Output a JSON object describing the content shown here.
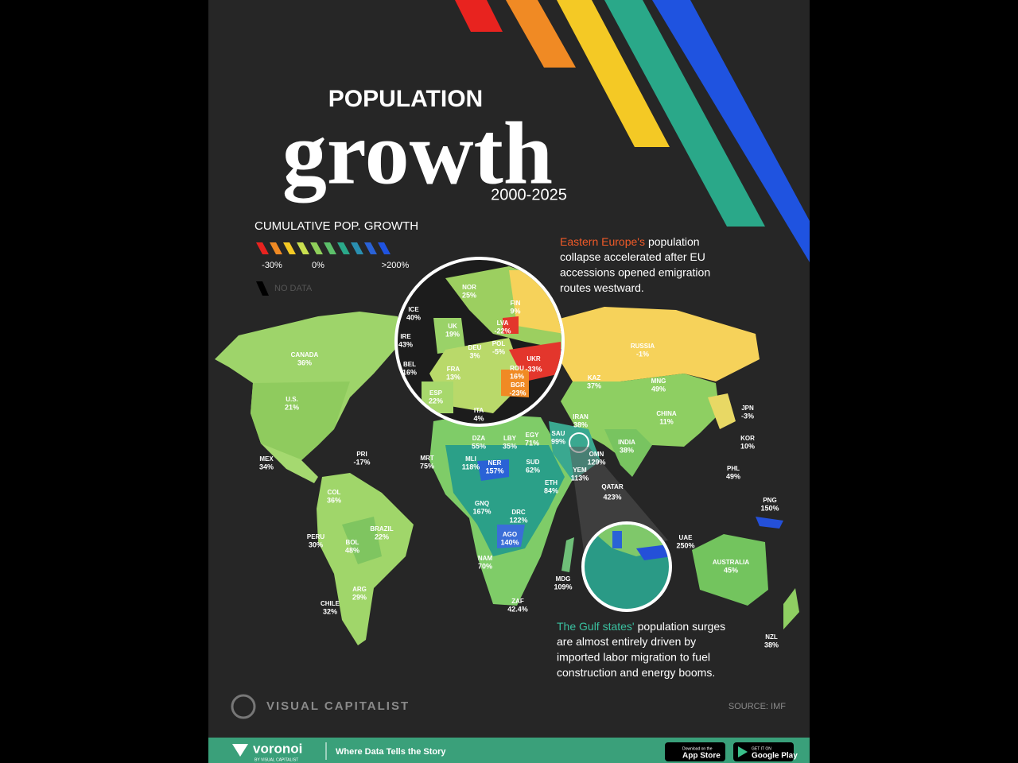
{
  "header": {
    "title_top": "POPULATION",
    "title_main": "growth",
    "years": "2000-2025"
  },
  "legend": {
    "title": "CUMULATIVE POP. GROWTH",
    "min": "-30%",
    "mid": "0%",
    "max": ">200%",
    "no_data": "NO DATA"
  },
  "annotations": [
    {
      "highlight": "Eastern Europe's",
      "lines": [
        "population",
        "collapse accelerated after EU",
        "accessions opened emigration",
        "routes westward."
      ]
    },
    {
      "highlight": "The Gulf states'",
      "lines": [
        "population surges",
        "are almost entirely driven by",
        "imported labor migration to fuel",
        "construction and energy booms."
      ]
    }
  ],
  "countries": [
    {
      "name": "CANADA",
      "value": "36%"
    },
    {
      "name": "U.S.",
      "value": "21%"
    },
    {
      "name": "MEX",
      "value": "34%"
    },
    {
      "name": "PRI",
      "value": "-17%"
    },
    {
      "name": "COL",
      "value": "36%"
    },
    {
      "name": "PERU",
      "value": "30%"
    },
    {
      "name": "BRAZIL",
      "value": "22%"
    },
    {
      "name": "BOL",
      "value": "48%"
    },
    {
      "name": "ARG",
      "value": "29%"
    },
    {
      "name": "CHILE",
      "value": "32%"
    },
    {
      "name": "RUSSIA",
      "value": "-1%"
    },
    {
      "name": "KAZ",
      "value": "37%"
    },
    {
      "name": "MNG",
      "value": "49%"
    },
    {
      "name": "CHINA",
      "value": "11%"
    },
    {
      "name": "JPN",
      "value": "-3%"
    },
    {
      "name": "KOR",
      "value": "10%"
    },
    {
      "name": "IRAN",
      "value": "38%"
    },
    {
      "name": "INDIA",
      "value": "38%"
    },
    {
      "name": "PHL",
      "value": "49%"
    },
    {
      "name": "PNG",
      "value": "150%"
    },
    {
      "name": "AUSTRALIA",
      "value": "45%"
    },
    {
      "name": "NZL",
      "value": "38%"
    },
    {
      "name": "DZA",
      "value": "55%"
    },
    {
      "name": "LBY",
      "value": "35%"
    },
    {
      "name": "EGY",
      "value": "71%"
    },
    {
      "name": "SAU",
      "value": "99%"
    },
    {
      "name": "OMN",
      "value": "129%"
    },
    {
      "name": "YEM",
      "value": "113%"
    },
    {
      "name": "MRT",
      "value": "75%"
    },
    {
      "name": "MLI",
      "value": "118%"
    },
    {
      "name": "NER",
      "value": "157%"
    },
    {
      "name": "SUD",
      "value": "62%"
    },
    {
      "name": "ETH",
      "value": "84%"
    },
    {
      "name": "GNQ",
      "value": "167%"
    },
    {
      "name": "DRC",
      "value": "122%"
    },
    {
      "name": "AGO",
      "value": "140%"
    },
    {
      "name": "NAM",
      "value": "70%"
    },
    {
      "name": "MDG",
      "value": "109%"
    },
    {
      "name": "ZAF",
      "value": "42.4%"
    },
    {
      "name": "QATAR",
      "value": "423%"
    },
    {
      "name": "UAE",
      "value": "250%"
    }
  ],
  "europe_inset": [
    {
      "name": "NOR",
      "value": "25%"
    },
    {
      "name": "ICE",
      "value": "40%"
    },
    {
      "name": "FIN",
      "value": "9%"
    },
    {
      "name": "LVA",
      "value": "-22%"
    },
    {
      "name": "UK",
      "value": "19%"
    },
    {
      "name": "IRE",
      "value": "43%"
    },
    {
      "name": "POL",
      "value": "-5%"
    },
    {
      "name": "DEU",
      "value": "3%"
    },
    {
      "name": "UKR",
      "value": "-33%"
    },
    {
      "name": "BEL",
      "value": "16%"
    },
    {
      "name": "FRA",
      "value": "13%"
    },
    {
      "name": "ROU",
      "value": "16%"
    },
    {
      "name": "BGR",
      "value": "-23%"
    },
    {
      "name": "ESP",
      "value": "22%"
    },
    {
      "name": "ITA",
      "value": "4%"
    }
  ],
  "footer": {
    "brand": "VISUAL CAPITALIST",
    "source": "SOURCE: IMF"
  },
  "banner": {
    "logo": "voronoi",
    "logo_sub": "BY VISUAL CAPITALIST",
    "tagline": "Where Data Tells the Story",
    "app_store_top": "Download on the",
    "app_store": "App Store",
    "google_top": "GET IT ON",
    "google": "Google Play"
  }
}
